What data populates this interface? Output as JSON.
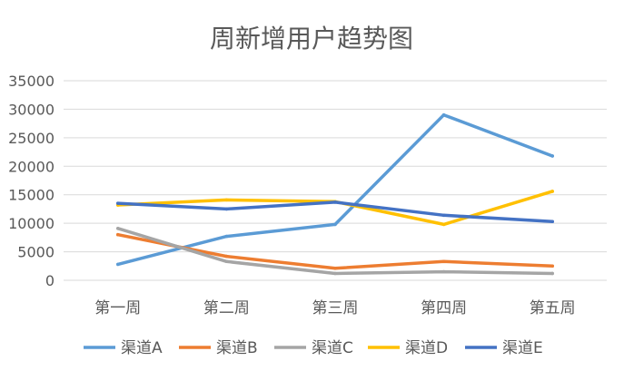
{
  "chart_data": {
    "type": "line",
    "title": "周新增用户趋势图",
    "categories": [
      "第一周",
      "第二周",
      "第三周",
      "第四周",
      "第五周"
    ],
    "ylim": [
      0,
      35000
    ],
    "yticks": [
      0,
      5000,
      10000,
      15000,
      20000,
      25000,
      30000,
      35000
    ],
    "grid": true,
    "legend_position": "bottom",
    "series": [
      {
        "name": "渠道A",
        "color": "#5b9bd5",
        "values": [
          2800,
          7700,
          9800,
          29000,
          21800
        ]
      },
      {
        "name": "渠道B",
        "color": "#ed7d31",
        "values": [
          8000,
          4200,
          2100,
          3300,
          2500
        ]
      },
      {
        "name": "渠道C",
        "color": "#a5a5a5",
        "values": [
          9100,
          3300,
          1200,
          1500,
          1200
        ]
      },
      {
        "name": "渠道D",
        "color": "#ffc000",
        "values": [
          13200,
          14100,
          13800,
          9800,
          15600
        ]
      },
      {
        "name": "渠道E",
        "color": "#4472c4",
        "values": [
          13500,
          12500,
          13700,
          11400,
          10300
        ]
      }
    ]
  }
}
